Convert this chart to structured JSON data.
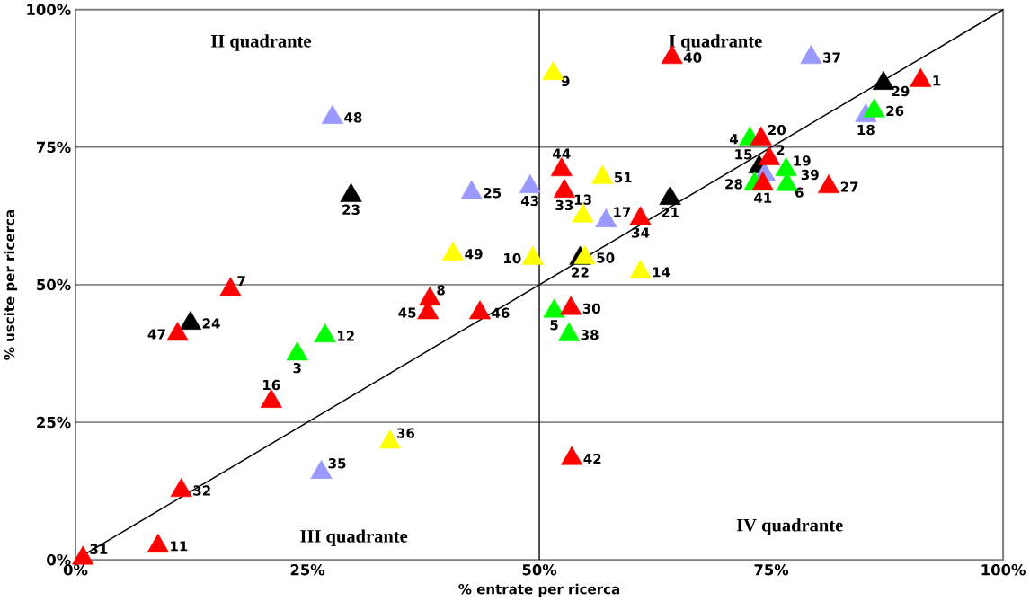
{
  "chart_data": {
    "type": "scatter",
    "xlabel": "% entrate per ricerca",
    "ylabel": "% uscite per ricerca",
    "xlim": [
      0,
      100
    ],
    "ylim": [
      0,
      100
    ],
    "xticks": [
      {
        "value": 0,
        "label": "0%"
      },
      {
        "value": 25,
        "label": "25%"
      },
      {
        "value": 50,
        "label": "50%"
      },
      {
        "value": 75,
        "label": "75%"
      },
      {
        "value": 100,
        "label": "100%"
      }
    ],
    "yticks": [
      {
        "value": 0,
        "label": "0%"
      },
      {
        "value": 25,
        "label": "25%"
      },
      {
        "value": 50,
        "label": "50%"
      },
      {
        "value": 75,
        "label": "75%"
      },
      {
        "value": 100,
        "label": "100%"
      }
    ],
    "grid": "y",
    "marker": "triangle",
    "ref_lines": [
      {
        "axis": "x",
        "value": 50,
        "color": "#000000"
      }
    ],
    "series": [
      {
        "type": "line",
        "color": "#000000",
        "marker": "none",
        "x": [
          0,
          100
        ],
        "values": [
          0,
          100
        ]
      },
      {
        "color": "#ff0000",
        "x": [
          91.1,
          74.8,
          16.7,
          38.2,
          8.9,
          21.1,
          73.9,
          81.2,
          53.4,
          0.8,
          11.4,
          52.7,
          60.9,
          64.3,
          74.1,
          53.5,
          52.4,
          38.0,
          43.6,
          11.0
        ],
        "values": [
          87.1,
          72.9,
          49.1,
          47.4,
          2.5,
          28.8,
          76.5,
          67.8,
          45.7,
          0.3,
          12.6,
          67.0,
          62.0,
          91.3,
          68.3,
          18.4,
          70.9,
          44.9,
          44.9,
          41.0
        ]
      },
      {
        "color": "#ffff00",
        "x": [
          51.5,
          49.3,
          54.7,
          60.9,
          33.9,
          40.7,
          54.9,
          56.8
        ],
        "values": [
          88.4,
          54.8,
          62.5,
          52.3,
          21.4,
          55.6,
          54.9,
          69.5
        ]
      },
      {
        "color": "#00ff00",
        "x": [
          23.9,
          72.7,
          51.6,
          76.7,
          26.9,
          76.6,
          86.1,
          73.2,
          53.2
        ],
        "values": [
          37.4,
          76.5,
          45.2,
          68.2,
          40.7,
          70.9,
          81.6,
          68.3,
          40.9
        ]
      },
      {
        "color": "#9999ff",
        "x": [
          57.2,
          85.2,
          42.7,
          26.5,
          79.3,
          74.3,
          49.0,
          27.7
        ],
        "values": [
          61.6,
          80.7,
          66.7,
          15.9,
          91.3,
          70.0,
          67.8,
          80.4
        ]
      },
      {
        "color": "#000000",
        "x": [
          73.7,
          64.1,
          54.4,
          29.7,
          12.4,
          87.1
        ],
        "values": [
          71.4,
          65.7,
          54.8,
          66.2,
          43.0,
          86.6
        ]
      }
    ],
    "annotations": [
      "II quadrante",
      "I quadrante",
      "III quadrante",
      "IV quadrante",
      {
        "text": "1",
        "x": 91.1,
        "y": 87.1
      },
      {
        "text": "2",
        "x": 74.8,
        "y": 72.9
      },
      {
        "text": "3",
        "x": 23.9,
        "y": 37.4
      },
      {
        "text": "4",
        "x": 72.7,
        "y": 76.5
      },
      {
        "text": "5",
        "x": 51.6,
        "y": 45.2
      },
      {
        "text": "6",
        "x": 76.7,
        "y": 68.2
      },
      {
        "text": "7",
        "x": 16.7,
        "y": 49.1
      },
      {
        "text": "8",
        "x": 38.2,
        "y": 47.4
      },
      {
        "text": "9",
        "x": 51.5,
        "y": 88.4
      },
      {
        "text": "10",
        "x": 49.3,
        "y": 54.8
      },
      {
        "text": "11",
        "x": 8.9,
        "y": 2.5
      },
      {
        "text": "12",
        "x": 26.9,
        "y": 40.7
      },
      {
        "text": "13",
        "x": 54.7,
        "y": 62.5
      },
      {
        "text": "14",
        "x": 60.9,
        "y": 52.3
      },
      {
        "text": "15",
        "x": 73.7,
        "y": 71.4
      },
      {
        "text": "16",
        "x": 21.1,
        "y": 28.8
      },
      {
        "text": "17",
        "x": 57.2,
        "y": 61.6
      },
      {
        "text": "18",
        "x": 85.2,
        "y": 80.7
      },
      {
        "text": "19",
        "x": 76.6,
        "y": 70.9
      },
      {
        "text": "20",
        "x": 73.9,
        "y": 76.5
      },
      {
        "text": "21",
        "x": 64.1,
        "y": 65.7
      },
      {
        "text": "22",
        "x": 54.4,
        "y": 54.8
      },
      {
        "text": "23",
        "x": 29.7,
        "y": 66.2
      },
      {
        "text": "24",
        "x": 12.4,
        "y": 43.0
      },
      {
        "text": "25",
        "x": 42.7,
        "y": 66.7
      },
      {
        "text": "26",
        "x": 86.1,
        "y": 81.6
      },
      {
        "text": "27",
        "x": 81.2,
        "y": 67.8
      },
      {
        "text": "28",
        "x": 73.2,
        "y": 68.3
      },
      {
        "text": "29",
        "x": 87.1,
        "y": 86.6
      },
      {
        "text": "30",
        "x": 53.4,
        "y": 45.7
      },
      {
        "text": "31",
        "x": 0.8,
        "y": 0.3
      },
      {
        "text": "32",
        "x": 11.4,
        "y": 12.6
      },
      {
        "text": "33",
        "x": 52.7,
        "y": 67.0
      },
      {
        "text": "34",
        "x": 60.9,
        "y": 62.0
      },
      {
        "text": "35",
        "x": 26.5,
        "y": 15.9
      },
      {
        "text": "36",
        "x": 33.9,
        "y": 21.4
      },
      {
        "text": "37",
        "x": 79.3,
        "y": 91.3
      },
      {
        "text": "38",
        "x": 53.2,
        "y": 40.9
      },
      {
        "text": "39",
        "x": 74.3,
        "y": 70.0
      },
      {
        "text": "40",
        "x": 64.3,
        "y": 91.3
      },
      {
        "text": "41",
        "x": 74.1,
        "y": 68.3
      },
      {
        "text": "42",
        "x": 53.5,
        "y": 18.4
      },
      {
        "text": "43",
        "x": 49.0,
        "y": 67.8
      },
      {
        "text": "44",
        "x": 52.4,
        "y": 70.9
      },
      {
        "text": "45",
        "x": 38.0,
        "y": 44.9
      },
      {
        "text": "46",
        "x": 43.6,
        "y": 44.9
      },
      {
        "text": "47",
        "x": 11.0,
        "y": 41.0
      },
      {
        "text": "48",
        "x": 27.7,
        "y": 80.4
      },
      {
        "text": "49",
        "x": 40.7,
        "y": 55.6
      },
      {
        "text": "50",
        "x": 54.9,
        "y": 54.9
      },
      {
        "text": "51",
        "x": 56.8,
        "y": 69.5
      }
    ]
  }
}
